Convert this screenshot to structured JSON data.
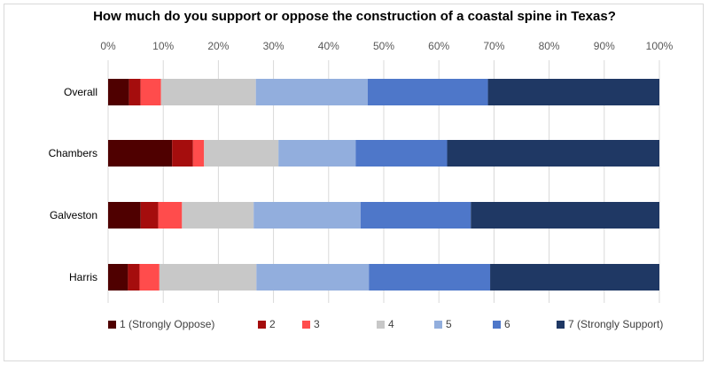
{
  "chart_data": {
    "type": "bar",
    "orientation": "horizontal",
    "stacked": true,
    "percent_stacked": true,
    "title": "How much do you support or oppose the construction of a coastal spine in Texas?",
    "xlabel": "",
    "ylabel": "",
    "xlim": [
      0,
      100
    ],
    "x_ticks": [
      "0%",
      "10%",
      "20%",
      "30%",
      "40%",
      "50%",
      "60%",
      "70%",
      "80%",
      "90%",
      "100%"
    ],
    "grid": true,
    "legend_position": "bottom",
    "categories": [
      "Overall",
      "Chambers",
      "Galveston",
      "Harris"
    ],
    "series": [
      {
        "name": "1 (Strongly Oppose)",
        "color": "#4f0000",
        "values": [
          3.8,
          11.6,
          5.9,
          3.6
        ]
      },
      {
        "name": "2",
        "color": "#a50d0d",
        "values": [
          2.1,
          3.8,
          3.2,
          2.1
        ]
      },
      {
        "name": "3",
        "color": "#ff4c4c",
        "values": [
          3.7,
          2.0,
          4.3,
          3.6
        ]
      },
      {
        "name": "4",
        "color": "#c8c8c8",
        "values": [
          17.2,
          13.5,
          13.0,
          17.6
        ]
      },
      {
        "name": "5",
        "color": "#92aedd",
        "values": [
          20.3,
          14.0,
          19.4,
          20.4
        ]
      },
      {
        "name": "6",
        "color": "#4e77c9",
        "values": [
          21.8,
          16.6,
          20.0,
          22.0
        ]
      },
      {
        "name": "7 (Strongly Support)",
        "color": "#1f3864",
        "values": [
          31.1,
          38.5,
          34.2,
          30.7
        ]
      }
    ]
  }
}
